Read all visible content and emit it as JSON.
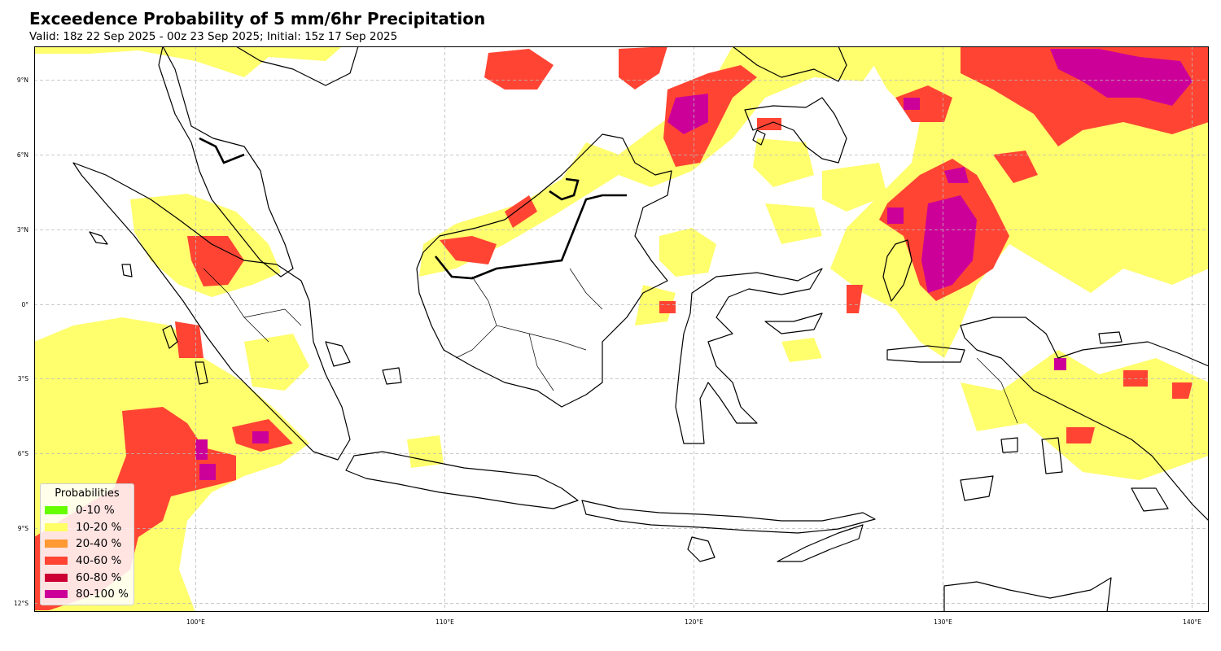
{
  "title": "Exceedence Probability of 5 mm/6hr Precipitation",
  "subtitle": "Valid: 18z 22 Sep 2025 - 00z 23 Sep 2025; Initial: 15z 17 Sep 2025",
  "map": {
    "projection": "PlateCarree",
    "region": "Indonesia / Maritime Continent",
    "lon_range": [
      93.5,
      140.7
    ],
    "lat_range": [
      -12.3,
      10.4
    ],
    "gridlines": true,
    "lon_ticks": [
      "100°E",
      "110°E",
      "120°E",
      "130°E",
      "140°E"
    ],
    "lat_ticks": [
      "9°N",
      "6°N",
      "3°N",
      "0°",
      "3°S",
      "6°S",
      "9°S",
      "12°S"
    ]
  },
  "legend": {
    "title": "Probabilities",
    "placement": "lower-left",
    "items": [
      {
        "label": "0-10 %",
        "color": "#66ff00"
      },
      {
        "label": "10-20 %",
        "color": "#ffff66"
      },
      {
        "label": "20-40 %",
        "color": "#ff9933"
      },
      {
        "label": "40-60 %",
        "color": "#ff4433"
      },
      {
        "label": "60-80 %",
        "color": "#cc0033"
      },
      {
        "label": "80-100 %",
        "color": "#cc0099"
      }
    ]
  }
}
